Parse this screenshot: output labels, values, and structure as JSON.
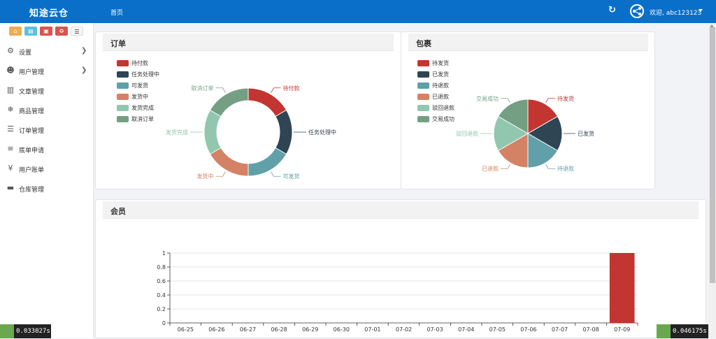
{
  "header": {
    "brand": "知途云仓",
    "nav_home": "首页",
    "welcome": "欢迎, abc123123"
  },
  "sidebar": {
    "items": [
      {
        "label": "设置",
        "icon": "gears-icon",
        "has_arrow": true
      },
      {
        "label": "用户管理",
        "icon": "users-icon",
        "has_arrow": true
      },
      {
        "label": "文章管理",
        "icon": "article-icon",
        "has_arrow": false
      },
      {
        "label": "商品管理",
        "icon": "snowflake-icon",
        "has_arrow": false
      },
      {
        "label": "订单管理",
        "icon": "server-icon",
        "has_arrow": false
      },
      {
        "label": "底单申请",
        "icon": "list-icon",
        "has_arrow": false
      },
      {
        "label": "用户账单",
        "icon": "yen-icon",
        "has_arrow": false
      },
      {
        "label": "仓库管理",
        "icon": "truck-icon",
        "has_arrow": false
      }
    ],
    "quick_buttons": [
      {
        "icon": "home-icon",
        "color": "#f0ad4e"
      },
      {
        "icon": "file-icon",
        "color": "#5bc0de"
      },
      {
        "icon": "trash-icon",
        "color": "#d9534f"
      },
      {
        "icon": "recycle-icon",
        "color": "#d9534f"
      },
      {
        "icon": "list-icon",
        "color": "#f5f5f5"
      }
    ]
  },
  "panels": {
    "orders_title": "订单",
    "packages_title": "包裹",
    "members_title": "会员"
  },
  "timers": {
    "left": "0.033027s",
    "right": "0.046175s"
  },
  "chart_data": [
    {
      "type": "pie",
      "variant": "donut",
      "title": "订单",
      "legend_placement": "top-left",
      "slices": [
        {
          "name": "待付款",
          "value": 1,
          "color": "#c23531"
        },
        {
          "name": "任务处理中",
          "value": 1,
          "color": "#2f4554"
        },
        {
          "name": "可发货",
          "value": 1,
          "color": "#61a0a8"
        },
        {
          "name": "发货中",
          "value": 1,
          "color": "#d48265"
        },
        {
          "name": "发货完成",
          "value": 1,
          "color": "#91c7ae"
        },
        {
          "name": "取消订单",
          "value": 1,
          "color": "#749f83"
        }
      ]
    },
    {
      "type": "pie",
      "title": "包裹",
      "legend_placement": "top-left",
      "slices": [
        {
          "name": "待发货",
          "value": 1,
          "color": "#c23531"
        },
        {
          "name": "已发货",
          "value": 1,
          "color": "#2f4554"
        },
        {
          "name": "待退款",
          "value": 1,
          "color": "#61a0a8"
        },
        {
          "name": "已退款",
          "value": 1,
          "color": "#d48265"
        },
        {
          "name": "驳回退款",
          "value": 1,
          "color": "#91c7ae"
        },
        {
          "name": "交易成功",
          "value": 1,
          "color": "#749f83"
        }
      ]
    },
    {
      "type": "bar",
      "title": "会员",
      "categories": [
        "06-25",
        "06-26",
        "06-27",
        "06-28",
        "06-29",
        "06-30",
        "07-01",
        "07-02",
        "07-03",
        "07-04",
        "07-05",
        "07-06",
        "07-07",
        "07-08",
        "07-09"
      ],
      "values": [
        0,
        0,
        0,
        0,
        0,
        0,
        0,
        0,
        0,
        0,
        0,
        0,
        0,
        0,
        1
      ],
      "ylim": [
        0,
        1
      ],
      "yticks": [
        "0",
        "0.2",
        "0.4",
        "0.6",
        "0.8",
        "1"
      ],
      "grid": true,
      "color": "#c23531"
    }
  ]
}
